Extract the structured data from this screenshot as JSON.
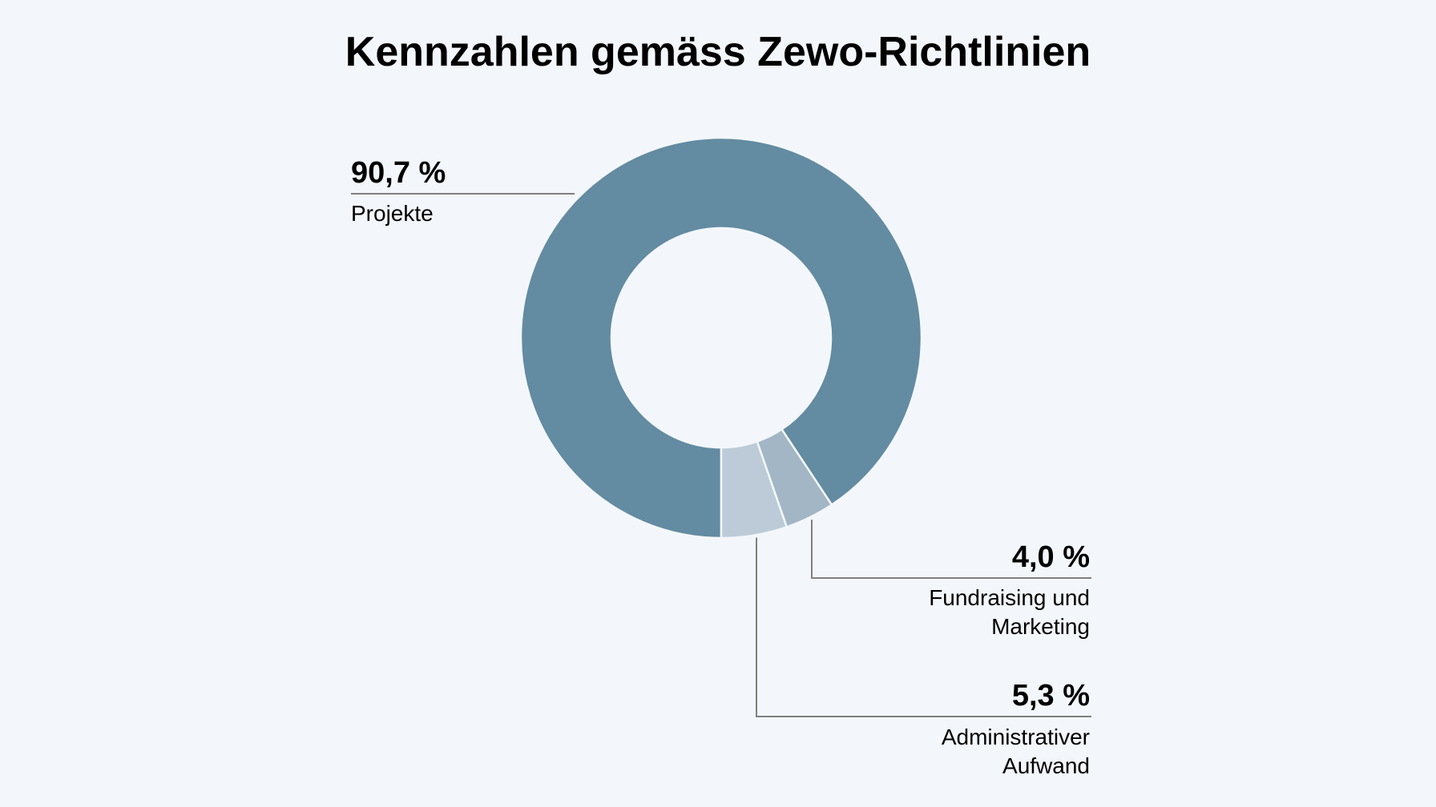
{
  "chart_data": {
    "type": "pie",
    "style": "donut",
    "title": "Kennzahlen gemäss Zewo-Richtlinien",
    "slices": [
      {
        "value": 90.7,
        "percent_label": "90,7 %",
        "label_lines": [
          "Projekte"
        ],
        "color": "#638ba1"
      },
      {
        "value": 4.0,
        "percent_label": "4,0 %",
        "label_lines": [
          "Fundraising und",
          "Marketing"
        ],
        "color": "#a3b6c5"
      },
      {
        "value": 5.3,
        "percent_label": "5,3 %",
        "label_lines": [
          "Administrativer",
          "Aufwand"
        ],
        "color": "#bdcbd8"
      }
    ]
  },
  "colors": {
    "background": "#f3f7fb",
    "leader_line": "#808080",
    "text": "#000000"
  }
}
